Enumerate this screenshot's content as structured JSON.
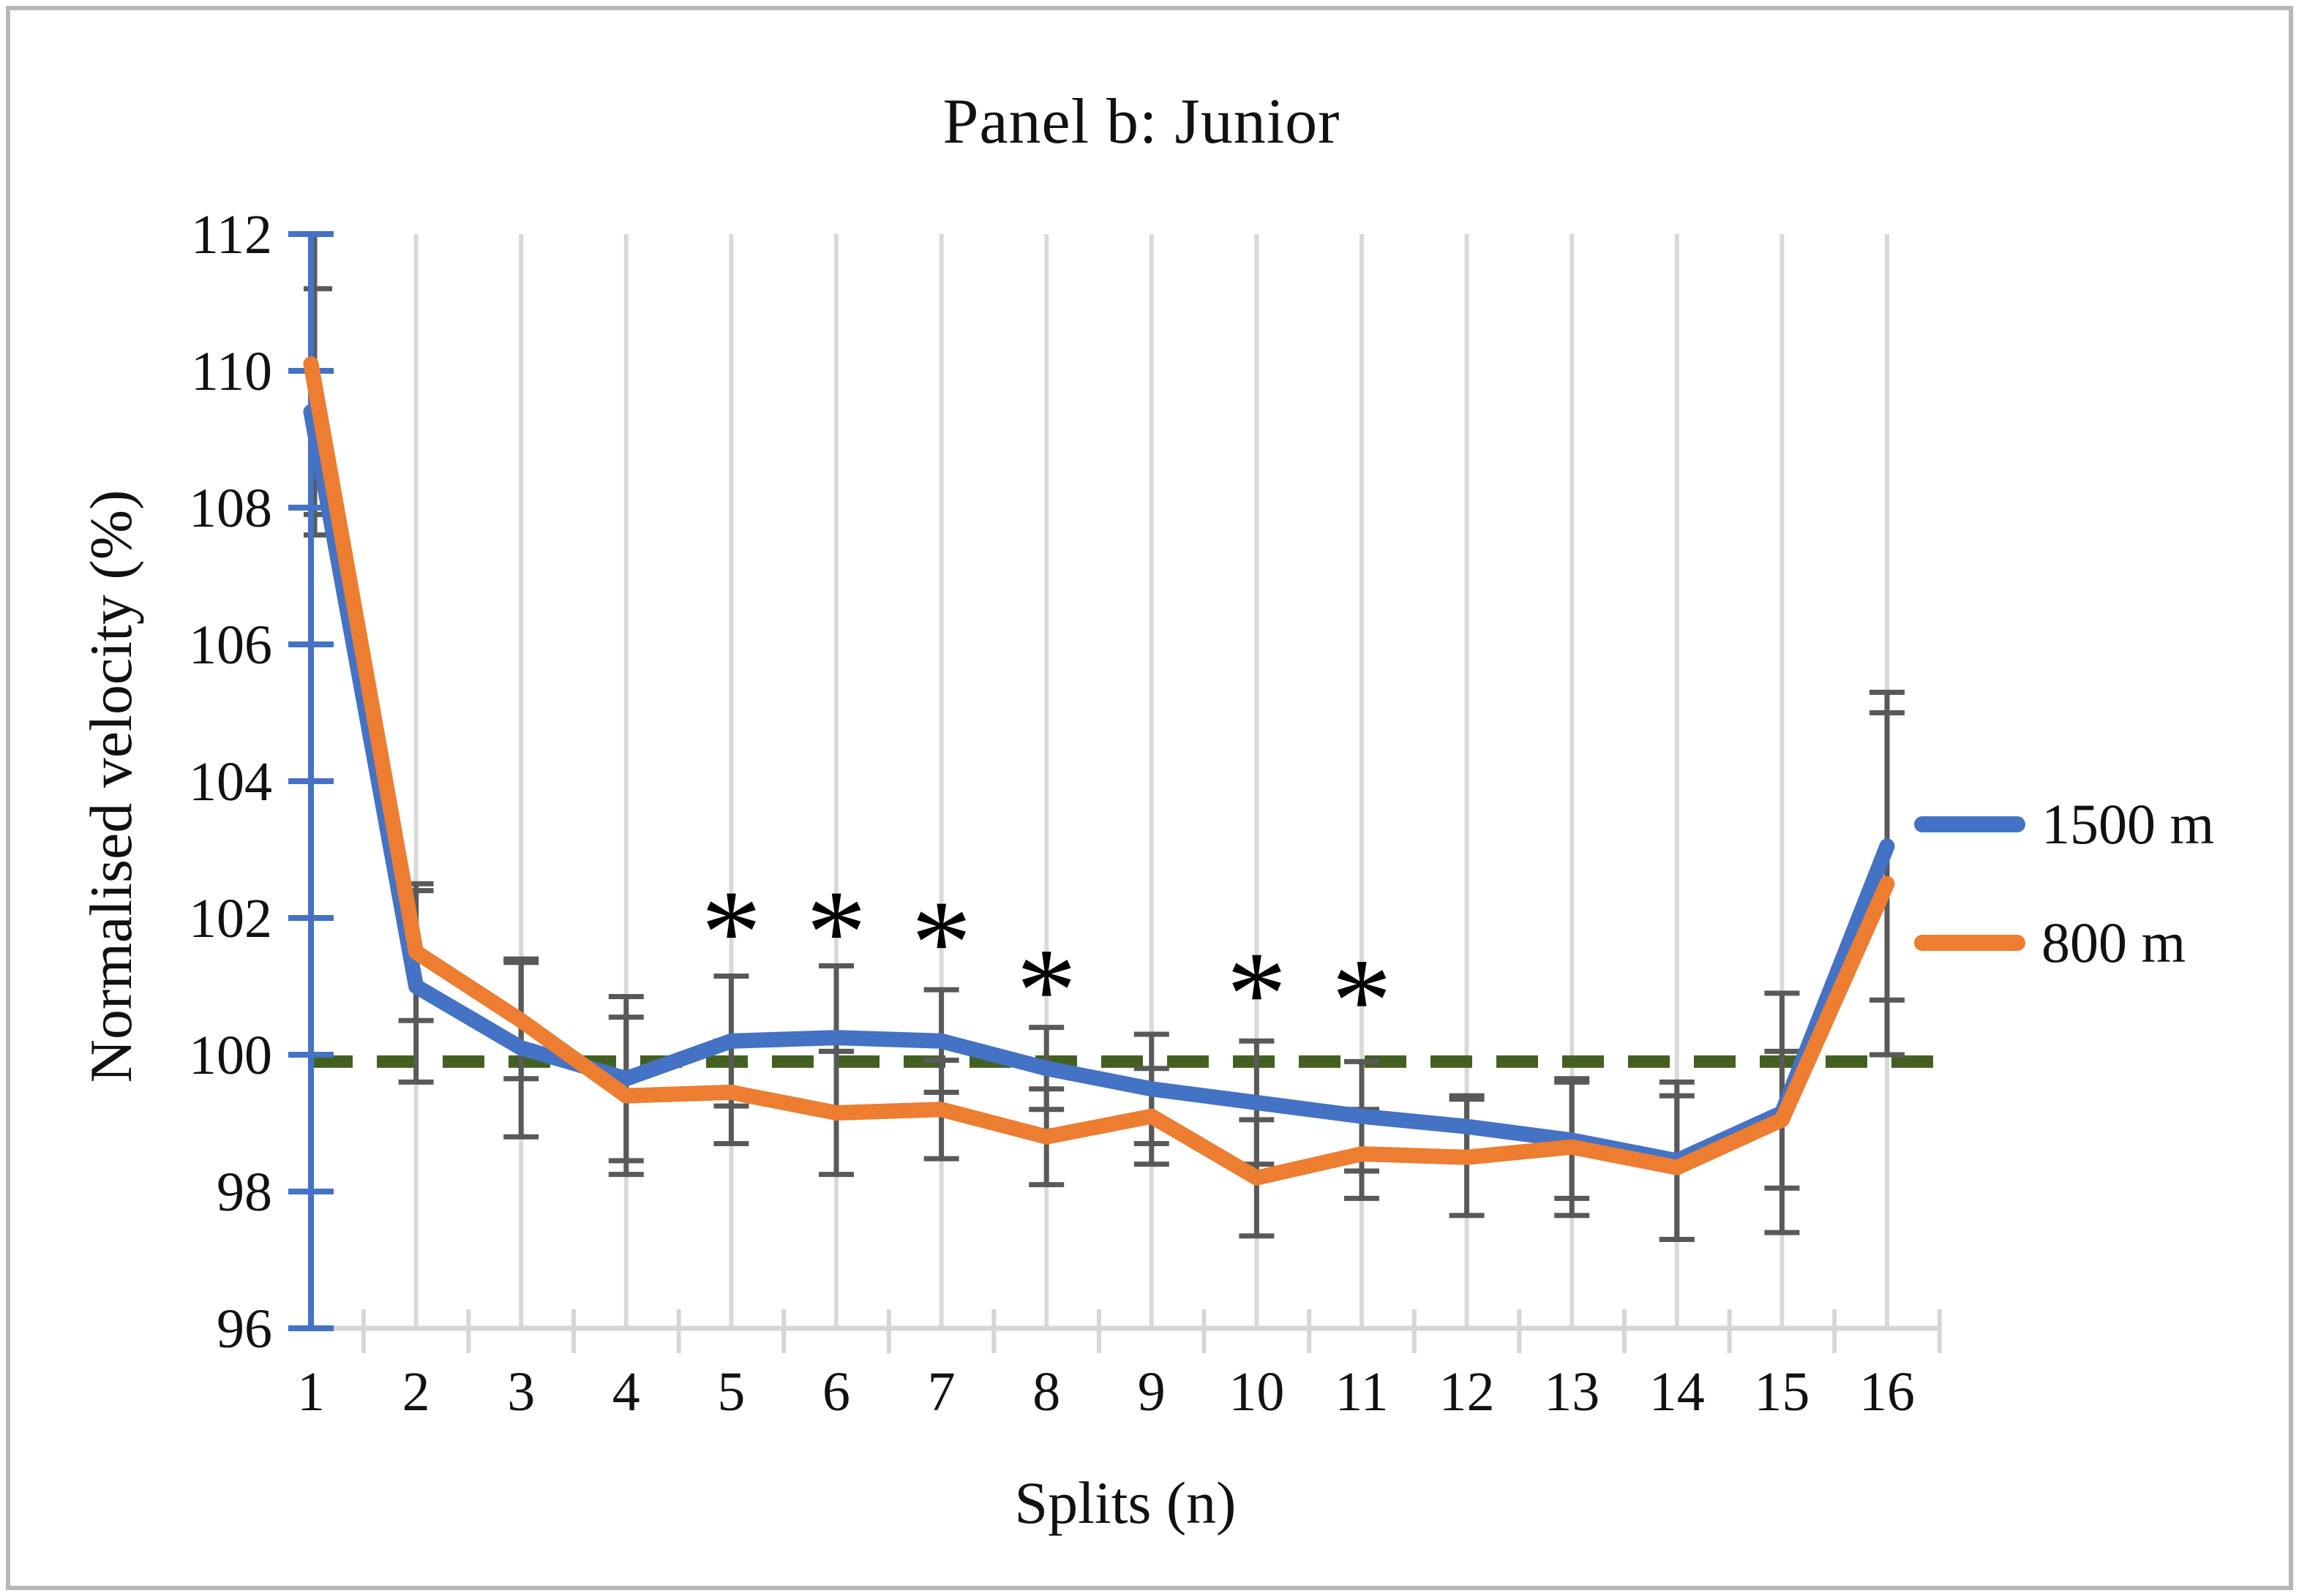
{
  "title": "Panel b: Junior",
  "x_axis": {
    "label": "Splits (n)"
  },
  "y_axis": {
    "label": "Normalised velocity (%)",
    "tick_labels": [
      "96",
      "98",
      "100",
      "102",
      "104",
      "106",
      "108",
      "110",
      "112"
    ]
  },
  "legend": {
    "items": [
      {
        "label": "1500 m",
        "color": "#4472C4"
      },
      {
        "label": "800 m",
        "color": "#ED7D31"
      }
    ]
  },
  "reference_line": {
    "value": 99.9,
    "color": "#446020",
    "style": "dashed"
  },
  "significance_markers": {
    "symbol": "*",
    "splits": [
      5,
      6,
      7,
      8,
      10,
      11
    ],
    "y_values": [
      101.95,
      101.95,
      101.8,
      101.1,
      101.05,
      100.95
    ]
  },
  "colors": {
    "series_1500m": "#4472C4",
    "series_800m": "#ED7D31",
    "error_bar": "#595959",
    "gridline": "#D9D9D9",
    "x_axis_line": "#D6D6D6",
    "y_axis_line": "#4472C4",
    "frame_border": "#b7b7b7"
  },
  "chart_data": {
    "type": "line",
    "title": "Panel b: Junior",
    "xlabel": "Splits (n)",
    "ylabel": "Normalised velocity (%)",
    "categories": [
      "1",
      "2",
      "3",
      "4",
      "5",
      "6",
      "7",
      "8",
      "9",
      "10",
      "11",
      "12",
      "13",
      "14",
      "15",
      "16"
    ],
    "ylim": [
      96,
      112
    ],
    "ytick_step": 2,
    "grid": "vertical",
    "legend_position": "right",
    "series": [
      {
        "name": "1500 m",
        "color": "#4472C4",
        "values": [
          109.4,
          101.0,
          100.1,
          99.65,
          100.2,
          100.25,
          100.2,
          99.8,
          99.5,
          99.3,
          99.1,
          98.95,
          98.75,
          98.45,
          99.15,
          103.05
        ],
        "errors": [
          1.8,
          1.4,
          1.3,
          1.2,
          0.95,
          1.05,
          0.75,
          0.6,
          0.8,
          0.9,
          0.8,
          0.45,
          0.85,
          1.15,
          1.75,
          2.25
        ]
      },
      {
        "name": "800 m",
        "color": "#ED7D31",
        "values": [
          110.1,
          101.5,
          100.5,
          99.4,
          99.45,
          99.15,
          99.2,
          98.8,
          99.1,
          98.2,
          98.55,
          98.5,
          98.65,
          98.35,
          99.05,
          102.5
        ],
        "errors": [
          2.2,
          1.0,
          0.85,
          1.15,
          0.75,
          0.9,
          0.72,
          0.7,
          0.7,
          0.85,
          0.65,
          0.85,
          1.0,
          1.05,
          1.0,
          2.5
        ]
      }
    ],
    "reference_line_y": 99.9,
    "significance_marker_splits": [
      5,
      6,
      7,
      8,
      10,
      11
    ]
  }
}
